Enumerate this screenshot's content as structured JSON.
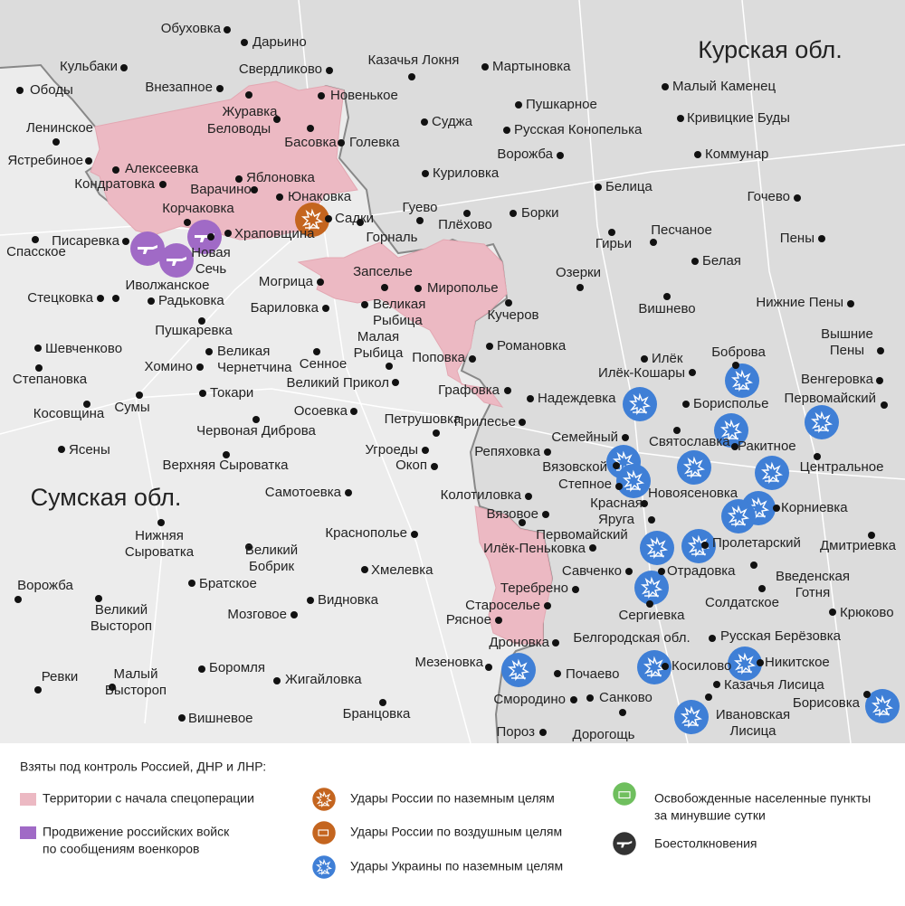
{
  "regions": [
    "Курская обл.",
    "Сумская обл.",
    "Белгородская обл."
  ],
  "places": [
    [
      "Обуховка"
    ],
    [
      "Дарьино"
    ],
    [
      "Свердликово"
    ],
    [
      "Казачья Локня"
    ],
    [
      "Мартыновка"
    ],
    [
      "Кульбаки"
    ],
    [
      "Ободы"
    ],
    [
      "Внезапное"
    ],
    [
      "Новенькое"
    ],
    [
      "Малый Каменец"
    ],
    [
      "Журавка"
    ],
    [
      "Пушкарное"
    ],
    [
      "Беловоды"
    ],
    [
      "Ленинское"
    ],
    [
      "Суджа"
    ],
    [
      "Русская Конопелька"
    ],
    [
      "Кривицкие Буды"
    ],
    [
      "Басовка"
    ],
    [
      "Голевка"
    ],
    [
      "Ястребиное"
    ],
    [
      "Алексеевка"
    ],
    [
      "Кондратовка"
    ],
    [
      "Яблоновка"
    ],
    [
      "Варачино"
    ],
    [
      "Юнаковка"
    ],
    [
      "Куриловка"
    ],
    [
      "Ворожба"
    ],
    [
      "Белица"
    ],
    [
      "Коммунар"
    ],
    [
      "Гочево"
    ],
    [
      "Корчаковка"
    ],
    [
      "Садки"
    ],
    [
      "Гуево"
    ],
    [
      "Плёхово"
    ],
    [
      "Борки"
    ],
    [
      "Песчаное"
    ],
    [
      "Пены"
    ],
    [
      "Писаревка"
    ],
    [
      "Спасское"
    ],
    [
      "Храповщина"
    ],
    [
      "Новая",
      "Сечь"
    ],
    [
      "Горналь"
    ],
    [
      "Гирьи"
    ],
    [
      "Белая"
    ],
    [
      "Озерки"
    ],
    [
      "Иволжанское"
    ],
    [
      "Могрица"
    ],
    [
      "Запселье"
    ],
    [
      "Мирополье"
    ],
    [
      "Стецковка"
    ],
    [
      "Радьковка"
    ],
    [
      "Бариловка"
    ],
    [
      "Великая",
      "Рыбица"
    ],
    [
      "Кучеров"
    ],
    [
      "Вишнево"
    ],
    [
      "Нижние Пены"
    ],
    [
      "Пушкаревка"
    ],
    [
      "Малая",
      "Рыбица"
    ],
    [
      "Романовка"
    ],
    [
      "Вышние",
      "Пены"
    ],
    [
      "Шевченково"
    ],
    [
      "Великая",
      "Чернетчина"
    ],
    [
      "Сенное"
    ],
    [
      "Поповка"
    ],
    [
      "Илёк"
    ],
    [
      "Боброва"
    ],
    [
      "Илёк-Кошары"
    ],
    [
      "Хомино"
    ],
    [
      "Степановка"
    ],
    [
      "Великий Прикол"
    ],
    [
      "Графовка"
    ],
    [
      "Надеждевка"
    ],
    [
      "Венгеровка"
    ],
    [
      "Борисполье"
    ],
    [
      "Первомайский"
    ],
    [
      "Токари"
    ],
    [
      "Косовщина"
    ],
    [
      "Сумы"
    ],
    [
      "Осоевка"
    ],
    [
      "Петрушовка"
    ],
    [
      "Прилесье"
    ],
    [
      "Червоная Диброва"
    ],
    [
      "Семейный"
    ],
    [
      "Святославка"
    ],
    [
      "Ракитное"
    ],
    [
      "Репяховка"
    ],
    [
      "Ясены"
    ],
    [
      "Центральное"
    ],
    [
      "Вязовской"
    ],
    [
      "Угроеды"
    ],
    [
      "Окоп"
    ],
    [
      "Верхняя Сыроватка"
    ],
    [
      "Степное"
    ],
    [
      "Колотиловка"
    ],
    [
      "Новоясеновка"
    ],
    [
      "Самотоевка"
    ],
    [
      "Красная",
      "Яруга"
    ],
    [
      "Корниевка"
    ],
    [
      "Вязовое"
    ],
    [
      "Нижняя",
      "Сыроватка"
    ],
    [
      "Краснополье"
    ],
    [
      "Первомайский"
    ],
    [
      "Пролетарский"
    ],
    [
      "Дмитриевка"
    ],
    [
      "Великий",
      "Бобрик"
    ],
    [
      "Илёк-Пеньковка"
    ],
    [
      "Хмелевка"
    ],
    [
      "Савченко"
    ],
    [
      "Отрадовка"
    ],
    [
      "Введенская",
      "Готня"
    ],
    [
      "Братское"
    ],
    [
      "Теребрено"
    ],
    [
      "Ворожба"
    ],
    [
      "Великий",
      "Выстороп"
    ],
    [
      "Видновка"
    ],
    [
      "Староселье"
    ],
    [
      "Солдатское"
    ],
    [
      "Сергиевка"
    ],
    [
      "Мозговое"
    ],
    [
      "Рясное"
    ],
    [
      "Крюково"
    ],
    [
      "Дроновка"
    ],
    [
      "Русская Берёзовка"
    ],
    [
      "Боромля"
    ],
    [
      "Мезеновка"
    ],
    [
      "Косилово"
    ],
    [
      "Никитское"
    ],
    [
      "Ревки"
    ],
    [
      "Жигайловка"
    ],
    [
      "Малый",
      "Выстороп"
    ],
    [
      "Почаево"
    ],
    [
      "Казачья Лисица"
    ],
    [
      "Смородино"
    ],
    [
      "Санково"
    ],
    [
      "Борисовка"
    ],
    [
      "Ивановская",
      "Лисица"
    ],
    [
      "Вишневое"
    ],
    [
      "Бранцовка"
    ],
    [
      "Пороз"
    ],
    [
      "Дорогощь"
    ]
  ],
  "legend": {
    "title": "Взяты под контроль Россией, ДНР и ЛНР:",
    "items": [
      [
        "Территории с начала спецоперации"
      ],
      [
        "Продвижение российских войск",
        "по сообщениям военкоров"
      ],
      [
        "Удары России по наземным целям"
      ],
      [
        "Удары России по воздушным целям"
      ],
      [
        "Удары Украины по наземным целям"
      ],
      [
        "Освобожденные населенные пункты",
        "за минувшие сутки"
      ],
      [
        "Боестолкновения"
      ]
    ]
  }
}
